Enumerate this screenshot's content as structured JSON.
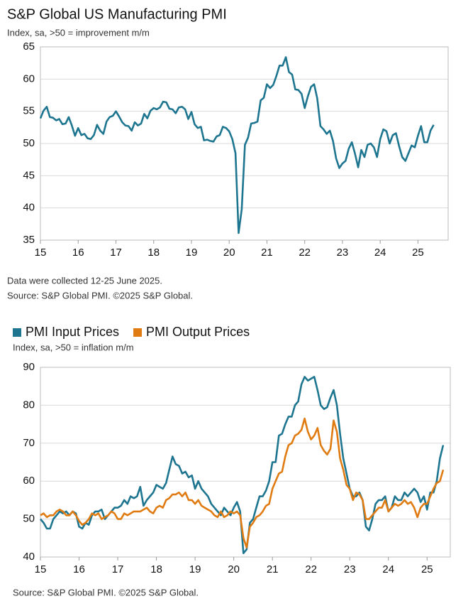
{
  "chart_data": [
    {
      "type": "line",
      "title": "S&P Global US Manufacturing PMI",
      "subtitle": "Index, sa, >50 = improvement m/m",
      "x": [
        15,
        15.083,
        15.167,
        15.25,
        15.333,
        15.417,
        15.5,
        15.583,
        15.667,
        15.75,
        15.833,
        15.917,
        16,
        16.083,
        16.167,
        16.25,
        16.333,
        16.417,
        16.5,
        16.583,
        16.667,
        16.75,
        16.833,
        16.917,
        17,
        17.083,
        17.167,
        17.25,
        17.333,
        17.417,
        17.5,
        17.583,
        17.667,
        17.75,
        17.833,
        17.917,
        18,
        18.083,
        18.167,
        18.25,
        18.333,
        18.417,
        18.5,
        18.583,
        18.667,
        18.75,
        18.833,
        18.917,
        19,
        19.083,
        19.167,
        19.25,
        19.333,
        19.417,
        19.5,
        19.583,
        19.667,
        19.75,
        19.833,
        19.917,
        20,
        20.083,
        20.167,
        20.25,
        20.333,
        20.417,
        20.5,
        20.583,
        20.667,
        20.75,
        20.833,
        20.917,
        21,
        21.083,
        21.167,
        21.25,
        21.333,
        21.417,
        21.5,
        21.583,
        21.667,
        21.75,
        21.833,
        21.917,
        22,
        22.083,
        22.167,
        22.25,
        22.333,
        22.417,
        22.5,
        22.583,
        22.667,
        22.75,
        22.833,
        22.917,
        23,
        23.083,
        23.167,
        23.25,
        23.333,
        23.417,
        23.5,
        23.583,
        23.667,
        23.75,
        23.833,
        23.917,
        24,
        24.083,
        24.167,
        24.25,
        24.333,
        24.417,
        24.5,
        24.583,
        24.667,
        24.75,
        24.833,
        24.917,
        25,
        25.083,
        25.167,
        25.25,
        25.333,
        25.417
      ],
      "series": [
        {
          "name": "PMI",
          "color": "#1d7590",
          "values": [
            53.9,
            55.1,
            55.7,
            54.1,
            54.0,
            53.6,
            53.8,
            53.0,
            53.1,
            54.1,
            52.8,
            51.2,
            52.4,
            51.3,
            51.5,
            50.8,
            50.7,
            51.3,
            52.9,
            52.0,
            51.5,
            53.4,
            54.1,
            54.3,
            55.0,
            54.2,
            53.3,
            52.8,
            52.7,
            52.0,
            53.3,
            52.8,
            53.1,
            54.6,
            53.9,
            55.1,
            55.5,
            55.3,
            55.6,
            56.5,
            56.4,
            55.4,
            55.3,
            54.7,
            55.6,
            55.7,
            55.3,
            53.8,
            54.9,
            53.0,
            52.4,
            52.6,
            50.5,
            50.6,
            50.4,
            50.3,
            51.1,
            51.3,
            52.6,
            52.4,
            51.9,
            50.7,
            48.5,
            36.1,
            39.8,
            49.8,
            50.9,
            53.1,
            53.2,
            53.4,
            56.7,
            57.1,
            59.2,
            58.6,
            59.1,
            60.5,
            62.1,
            62.1,
            63.4,
            61.1,
            60.7,
            58.4,
            58.3,
            57.7,
            55.5,
            57.3,
            58.8,
            59.2,
            57.0,
            52.7,
            52.2,
            51.5,
            52.0,
            50.4,
            47.7,
            46.2,
            46.9,
            47.3,
            49.2,
            50.2,
            48.4,
            46.3,
            49.0,
            47.9,
            49.8,
            50.0,
            49.4,
            47.9,
            50.7,
            52.2,
            51.9,
            50.0,
            51.3,
            51.6,
            49.6,
            47.9,
            47.3,
            48.5,
            49.7,
            49.4,
            51.2,
            52.7,
            50.2,
            50.2,
            52.0,
            52.9
          ]
        }
      ],
      "xlim": [
        15,
        25.8
      ],
      "xticks": [
        15,
        16,
        17,
        18,
        19,
        20,
        21,
        22,
        23,
        24,
        25
      ],
      "ylim": [
        35,
        65
      ],
      "yticks": [
        35,
        40,
        45,
        50,
        55,
        60,
        65
      ],
      "grid": true,
      "notes": [
        "Data were collected 12-25 June 2025.",
        "Source: S&P Global PMI. ©2025 S&P Global."
      ]
    },
    {
      "type": "line",
      "subtitle": "Index, sa, >50 = inflation m/m",
      "legend": "top-left",
      "x": [
        15,
        15.083,
        15.167,
        15.25,
        15.333,
        15.417,
        15.5,
        15.583,
        15.667,
        15.75,
        15.833,
        15.917,
        16,
        16.083,
        16.167,
        16.25,
        16.333,
        16.417,
        16.5,
        16.583,
        16.667,
        16.75,
        16.833,
        16.917,
        17,
        17.083,
        17.167,
        17.25,
        17.333,
        17.417,
        17.5,
        17.583,
        17.667,
        17.75,
        17.833,
        17.917,
        18,
        18.083,
        18.167,
        18.25,
        18.333,
        18.417,
        18.5,
        18.583,
        18.667,
        18.75,
        18.833,
        18.917,
        19,
        19.083,
        19.167,
        19.25,
        19.333,
        19.417,
        19.5,
        19.583,
        19.667,
        19.75,
        19.833,
        19.917,
        20,
        20.083,
        20.167,
        20.25,
        20.333,
        20.417,
        20.5,
        20.583,
        20.667,
        20.75,
        20.833,
        20.917,
        21,
        21.083,
        21.167,
        21.25,
        21.333,
        21.417,
        21.5,
        21.583,
        21.667,
        21.75,
        21.833,
        21.917,
        22,
        22.083,
        22.167,
        22.25,
        22.333,
        22.417,
        22.5,
        22.583,
        22.667,
        22.75,
        22.833,
        22.917,
        23,
        23.083,
        23.167,
        23.25,
        23.333,
        23.417,
        23.5,
        23.583,
        23.667,
        23.75,
        23.833,
        23.917,
        24,
        24.083,
        24.167,
        24.25,
        24.333,
        24.417,
        24.5,
        24.583,
        24.667,
        24.75,
        24.833,
        24.917,
        25,
        25.083,
        25.167,
        25.25,
        25.333,
        25.417
      ],
      "series": [
        {
          "name": "PMI Input Prices",
          "color": "#1d7590",
          "values": [
            50,
            49,
            47.5,
            47.5,
            50,
            51,
            52,
            51.5,
            52,
            51,
            52,
            51.5,
            48,
            47.5,
            49,
            48.5,
            51,
            52,
            52,
            52.5,
            50,
            51,
            52,
            53,
            53,
            53.5,
            55,
            54,
            56,
            55.5,
            56,
            58.5,
            53.5,
            55,
            56,
            57,
            59,
            58.5,
            58,
            59.5,
            63,
            66.5,
            64.5,
            64,
            62,
            62.5,
            61,
            61.5,
            58,
            60,
            58,
            57,
            56,
            54,
            53,
            52,
            51,
            53,
            52,
            51,
            53,
            54.5,
            52,
            41,
            42,
            49,
            50,
            53,
            56,
            56,
            57.5,
            60,
            65,
            65,
            72,
            72.5,
            75,
            77,
            77,
            80,
            81,
            85.5,
            87.5,
            86.5,
            87,
            87.5,
            84,
            80,
            79,
            79.5,
            82,
            84,
            80,
            72.5,
            66,
            62,
            58,
            56,
            56,
            57,
            55,
            48,
            47,
            50,
            54,
            55,
            55,
            56,
            52,
            53,
            56,
            55,
            55,
            57,
            56,
            57,
            58,
            57,
            54.5,
            56,
            52.5,
            57,
            57,
            60,
            66,
            69.5
          ]
        },
        {
          "name": "PMI Output Prices",
          "color": "#e07b12",
          "values": [
            51,
            51.5,
            50.5,
            51,
            51,
            52,
            52.5,
            52,
            51,
            51,
            52,
            51,
            49.5,
            48.5,
            49,
            50,
            51.5,
            51,
            51.5,
            50,
            50.5,
            51,
            52,
            51.5,
            50,
            50,
            51.5,
            51,
            51.5,
            52,
            52,
            52,
            52.5,
            53,
            52,
            51.5,
            53,
            53.5,
            53,
            55,
            55.5,
            56.5,
            56.5,
            57,
            56,
            57,
            55,
            55,
            54,
            55,
            53.5,
            53,
            52.5,
            52,
            51,
            50.5,
            52,
            50.5,
            51,
            52,
            51.5,
            52,
            51,
            45,
            42.5,
            48,
            49,
            50.5,
            51,
            52,
            53.5,
            54,
            58,
            60,
            62,
            62.5,
            66.5,
            69.5,
            70,
            72,
            72.5,
            73.5,
            76.5,
            73,
            71,
            72,
            74,
            69.5,
            68,
            67,
            68.5,
            76,
            73,
            66,
            63,
            59,
            58,
            55,
            57,
            56.5,
            55,
            50,
            50,
            51,
            52,
            53,
            53,
            55,
            52,
            53,
            54,
            53.5,
            54,
            55,
            54,
            54.5,
            53,
            50.5,
            53,
            54,
            54,
            56,
            58,
            59.5,
            60,
            63
          ]
        }
      ],
      "xlim": [
        15,
        25.6
      ],
      "xticks": [
        15,
        16,
        17,
        18,
        19,
        20,
        21,
        22,
        23,
        24,
        25
      ],
      "ylim": [
        40,
        90
      ],
      "yticks": [
        40,
        50,
        60,
        70,
        80,
        90
      ],
      "grid": true,
      "notes": [
        "Source: S&P Global PMI. ©2025 S&P Global."
      ]
    }
  ]
}
